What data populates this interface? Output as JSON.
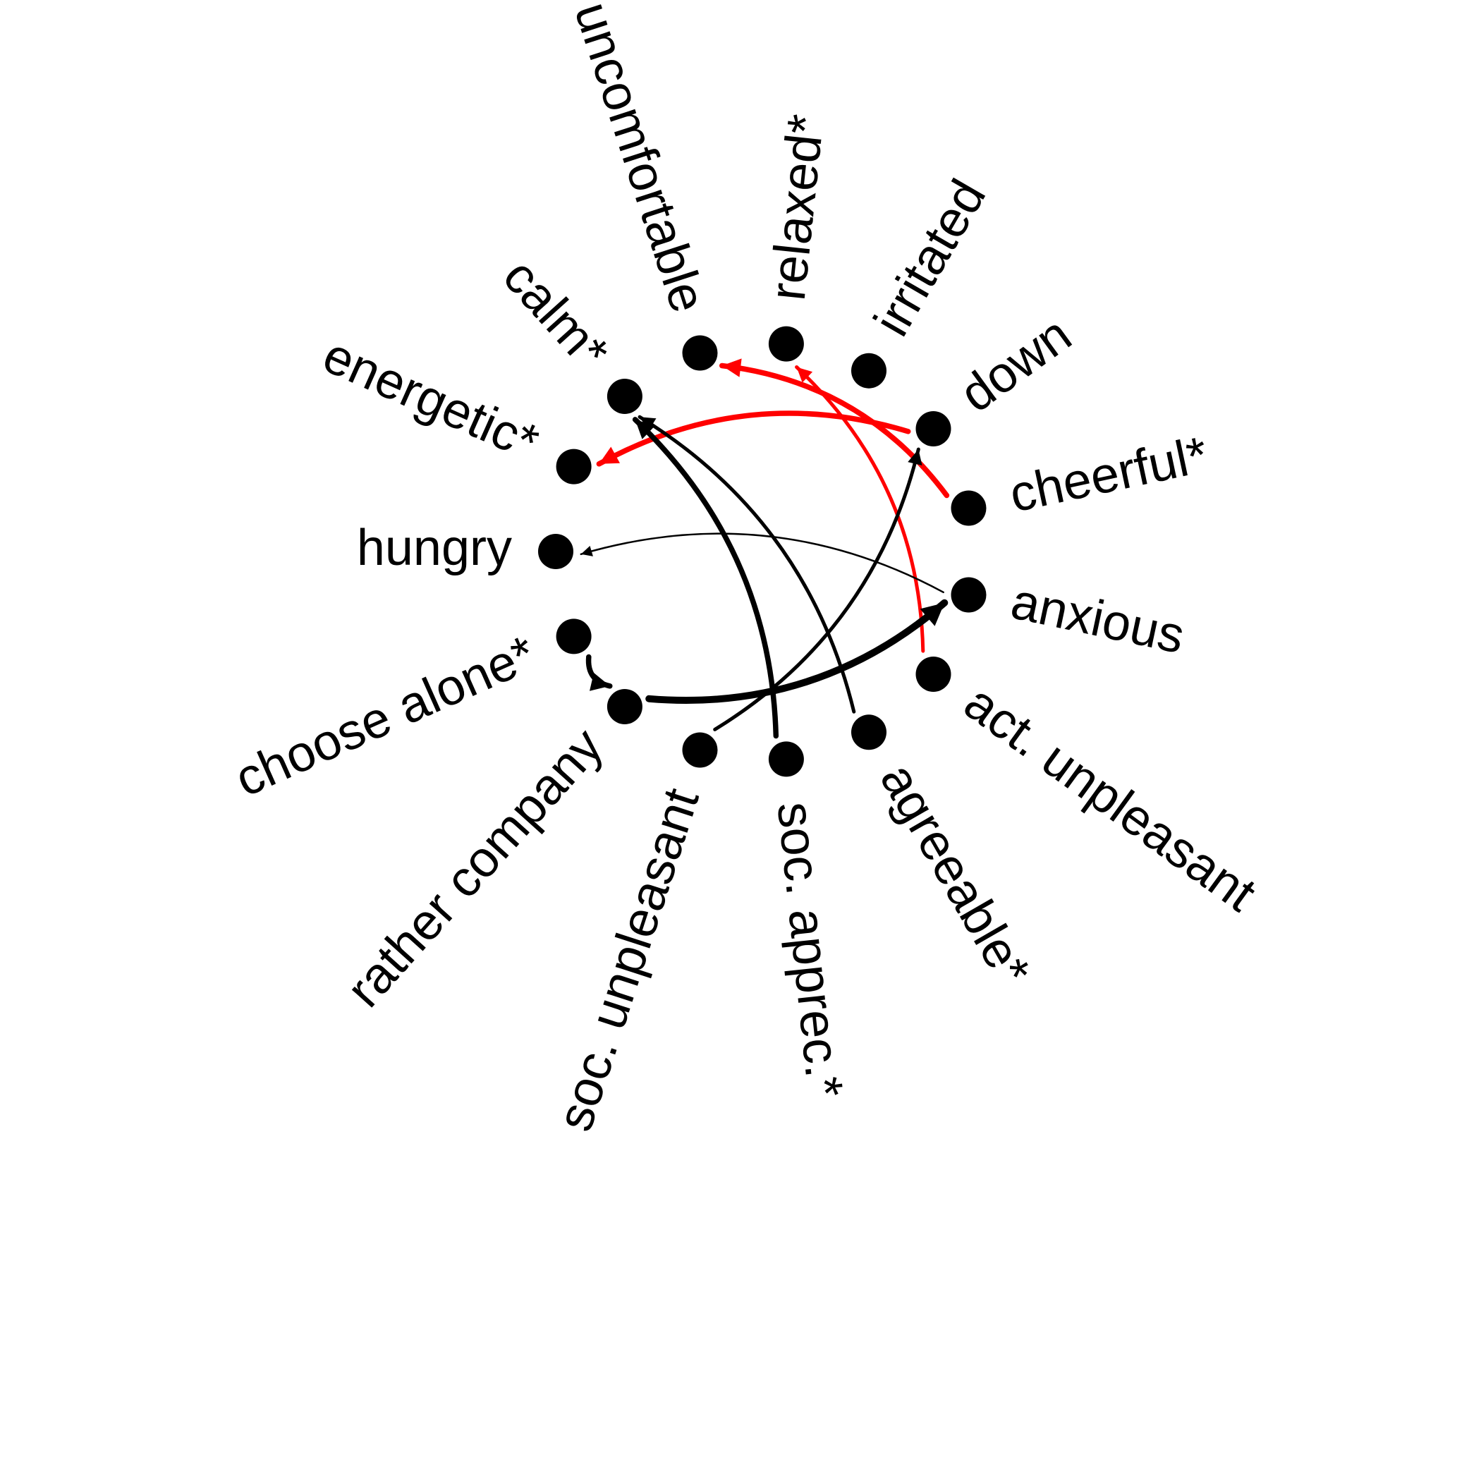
{
  "colors": {
    "positive": "#000000",
    "negative": "#ff0000",
    "node": "#000000"
  },
  "nodes": [
    {
      "id": "uncomfortable",
      "label": "uncomfortable"
    },
    {
      "id": "relaxed",
      "label": "relaxed*"
    },
    {
      "id": "irritated",
      "label": "irritated"
    },
    {
      "id": "down",
      "label": "down"
    },
    {
      "id": "cheerful",
      "label": "cheerful*"
    },
    {
      "id": "anxious",
      "label": "anxious"
    },
    {
      "id": "act_unpleasant",
      "label": "act. unpleasant"
    },
    {
      "id": "agreeable",
      "label": "agreeable*"
    },
    {
      "id": "soc_apprec",
      "label": "soc. apprec.*"
    },
    {
      "id": "soc_unpleasant",
      "label": "soc. unpleasant"
    },
    {
      "id": "rather_company",
      "label": "rather company"
    },
    {
      "id": "choose_alone",
      "label": "choose alone*"
    },
    {
      "id": "hungry",
      "label": "hungry"
    },
    {
      "id": "energetic",
      "label": "energetic*"
    },
    {
      "id": "calm",
      "label": "calm*"
    }
  ],
  "edges": [
    {
      "from": "cheerful",
      "to": "uncomfortable",
      "sign": "negative",
      "strength": 3
    },
    {
      "from": "down",
      "to": "energetic",
      "sign": "negative",
      "strength": 3
    },
    {
      "from": "act_unpleasant",
      "to": "relaxed",
      "sign": "negative",
      "strength": 2
    },
    {
      "from": "anxious",
      "to": "hungry",
      "sign": "positive",
      "strength": 1
    },
    {
      "from": "rather_company",
      "to": "anxious",
      "sign": "positive",
      "strength": 4
    },
    {
      "from": "choose_alone",
      "to": "rather_company",
      "sign": "positive",
      "strength": 3
    },
    {
      "from": "soc_unpleasant",
      "to": "down",
      "sign": "positive",
      "strength": 2
    },
    {
      "from": "soc_apprec",
      "to": "calm",
      "sign": "positive",
      "strength": 3
    },
    {
      "from": "agreeable",
      "to": "calm",
      "sign": "positive",
      "strength": 2
    }
  ]
}
